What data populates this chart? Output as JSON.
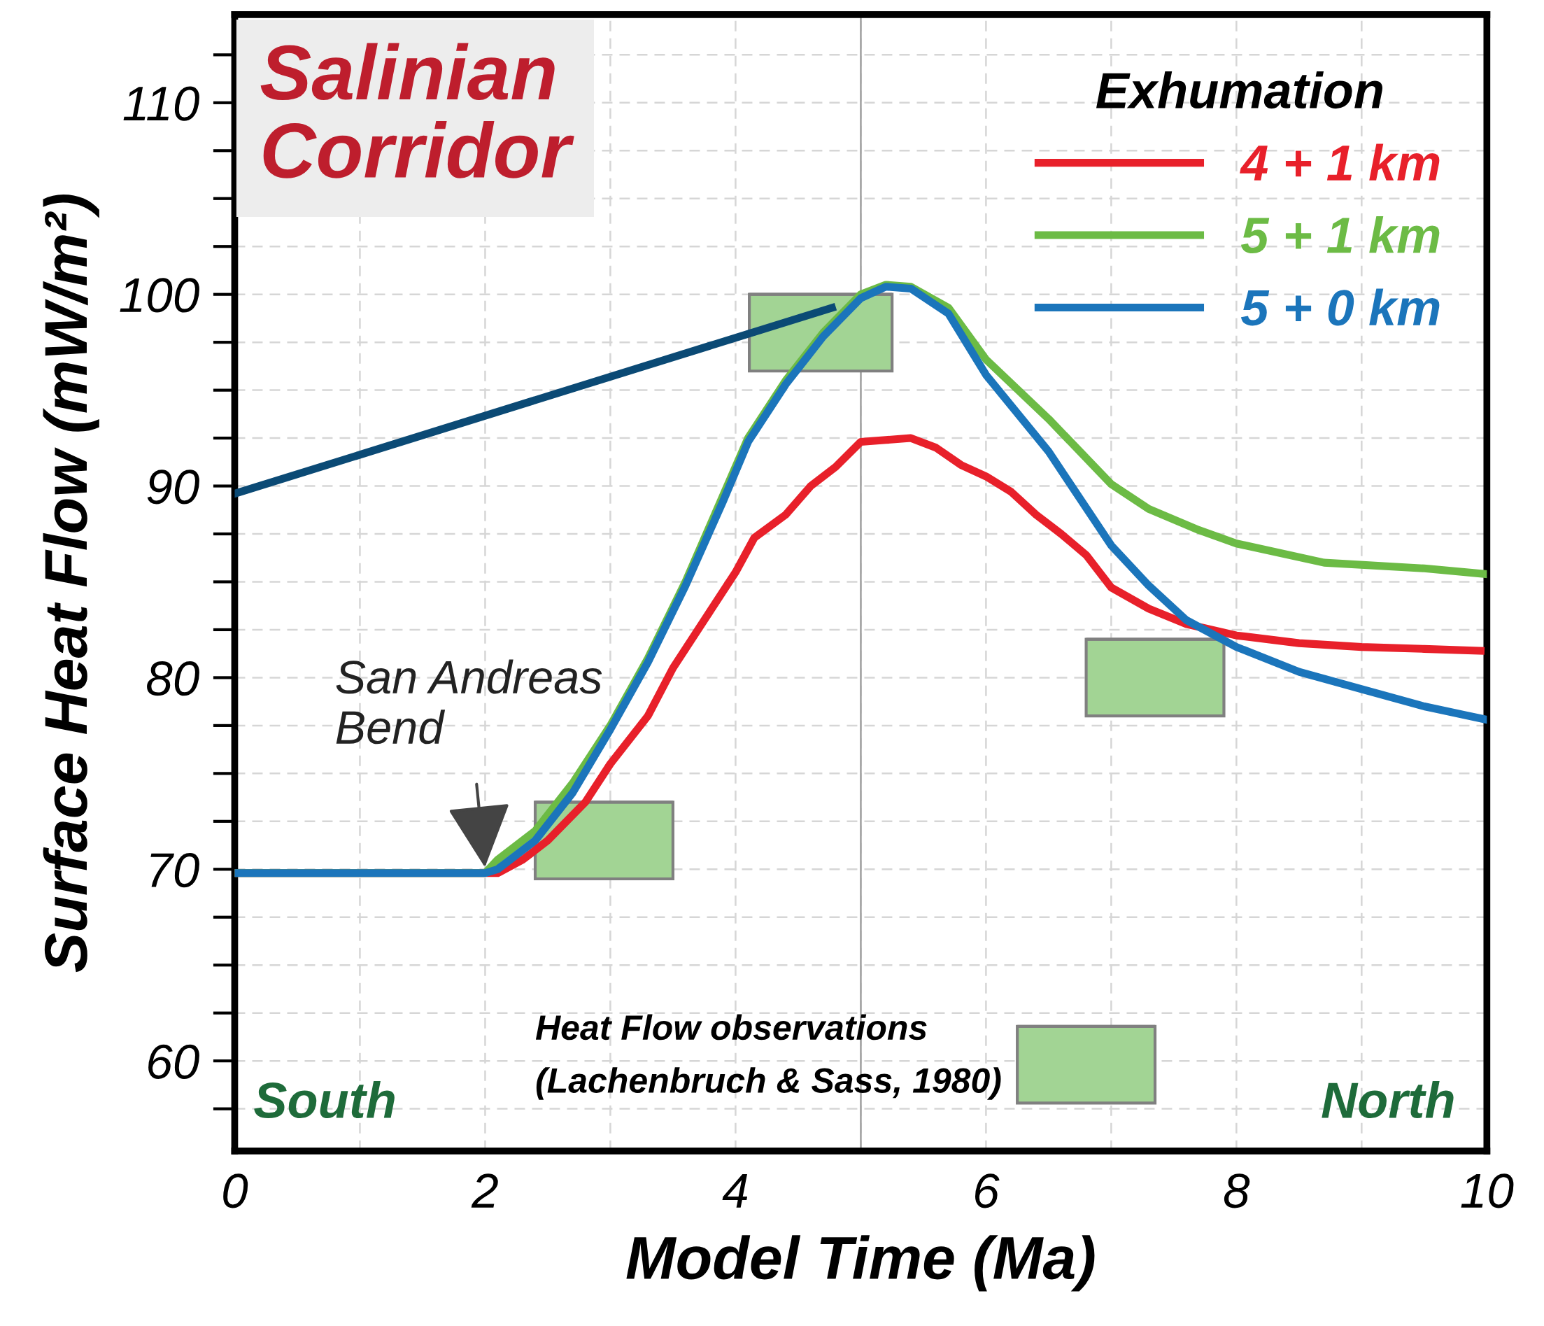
{
  "chart_data": {
    "type": "line",
    "title": "Salinian\nCorridor",
    "xlabel": "Model Time (Ma)",
    "ylabel": "Surface Heat Flow (mW/m²)",
    "legend_title": "Exhumation",
    "legend": "top right",
    "grid": true,
    "line_style": "solid",
    "marker": "none",
    "xlim": [
      0,
      10
    ],
    "ylim": [
      55.3,
      114.6
    ],
    "xticks": [
      0,
      {
        "value": 1,
        "label": null
      },
      2,
      {
        "value": 3,
        "label": null
      },
      4,
      {
        "value": 5,
        "label": null
      },
      6,
      {
        "value": 7,
        "label": null
      },
      8,
      {
        "value": 9,
        "label": null
      },
      10
    ],
    "yticks": [
      {
        "value": 57.5,
        "label": null
      },
      60,
      {
        "value": 62.5,
        "label": null
      },
      {
        "value": 65,
        "label": null
      },
      {
        "value": 67.5,
        "label": null
      },
      70,
      {
        "value": 72.5,
        "label": null
      },
      {
        "value": 75,
        "label": null
      },
      {
        "value": 77.5,
        "label": null
      },
      80,
      {
        "value": 82.5,
        "label": null
      },
      {
        "value": 85,
        "label": null
      },
      {
        "value": 87.5,
        "label": null
      },
      90,
      {
        "value": 92.5,
        "label": null
      },
      {
        "value": 95,
        "label": null
      },
      {
        "value": 97.5,
        "label": null
      },
      100,
      {
        "value": 102.5,
        "label": null
      },
      {
        "value": 105,
        "label": null
      },
      {
        "value": 107.5,
        "label": null
      },
      110,
      {
        "value": 112.5,
        "label": null
      }
    ],
    "ref_lines": [
      {
        "axis": "x",
        "value": 5,
        "color": "#a8a8a8"
      }
    ],
    "series": [
      {
        "type": "bar",
        "color": "#a2d494",
        "x": [
          2.95,
          4.68,
          6.8,
          7.35
        ],
        "base": [
          69.5,
          96,
          57.8,
          78
        ],
        "values": [
          4,
          4,
          4,
          4
        ],
        "xerrors": [
          0.55,
          0.57,
          0.55,
          0.55
        ]
      },
      {
        "type": "line",
        "color": "#0b4a75",
        "x": [
          0,
          4.77
        ],
        "values": [
          89.6,
          99.3
        ]
      },
      {
        "name": "4 + 1 km",
        "color": "#e8202a",
        "x": [
          0,
          2.1,
          2.3,
          2.5,
          2.8,
          3.0,
          3.3,
          3.5,
          3.8,
          4.0,
          4.15,
          4.4,
          4.6,
          4.8,
          5.0,
          5.2,
          5.4,
          5.6,
          5.8,
          6.0,
          6.2,
          6.4,
          6.6,
          6.8,
          7.0,
          7.3,
          7.6,
          8.0,
          8.5,
          9.0,
          9.5,
          9.95
        ],
        "values": [
          69.8,
          69.8,
          70.5,
          71.5,
          73.5,
          75.5,
          78,
          80.5,
          83.5,
          85.5,
          87.3,
          88.5,
          90,
          91,
          92.3,
          92.4,
          92.5,
          92,
          91.1,
          90.5,
          89.7,
          88.5,
          87.5,
          86.4,
          84.7,
          83.6,
          82.8,
          82.2,
          81.8,
          81.6,
          81.5,
          81.4
        ]
      },
      {
        "name": "5 + 1 km",
        "color": "#6cbb45",
        "x": [
          0,
          2.0,
          2.1,
          2.4,
          2.7,
          3.0,
          3.3,
          3.6,
          3.9,
          4.1,
          4.4,
          4.7,
          5.0,
          5.2,
          5.4,
          5.7,
          6.0,
          6.5,
          7.0,
          7.3,
          7.7,
          8.0,
          8.7,
          9.5,
          10
        ],
        "values": [
          69.8,
          69.8,
          70.5,
          72,
          74.5,
          77.5,
          81,
          85,
          89.5,
          92.5,
          95.5,
          98,
          100,
          100.5,
          100.4,
          99.3,
          96.6,
          93.5,
          90.1,
          88.8,
          87.7,
          87.0,
          86.0,
          85.7,
          85.4
        ]
      },
      {
        "name": "5 + 0 km",
        "color": "#1b75bb",
        "x": [
          0,
          2.0,
          2.1,
          2.4,
          2.7,
          3.0,
          3.3,
          3.6,
          3.9,
          4.1,
          4.4,
          4.7,
          5.0,
          5.2,
          5.4,
          5.7,
          6.0,
          6.5,
          7.0,
          7.3,
          7.6,
          8.0,
          8.5,
          9.0,
          9.5,
          10
        ],
        "values": [
          69.8,
          69.8,
          70,
          71.5,
          74,
          77.3,
          80.8,
          84.8,
          89.2,
          92.3,
          95.3,
          97.8,
          99.8,
          100.4,
          100.3,
          99,
          95.8,
          91.8,
          86.9,
          84.8,
          83.0,
          81.6,
          80.3,
          79.4,
          78.5,
          77.8
        ]
      }
    ],
    "annotations": [
      {
        "text": "San Andreas\nBend",
        "x": 2,
        "y": 70
      },
      "Heat Flow observations\n(Lachenbruch & Sass, 1980)",
      "South",
      "North"
    ]
  }
}
